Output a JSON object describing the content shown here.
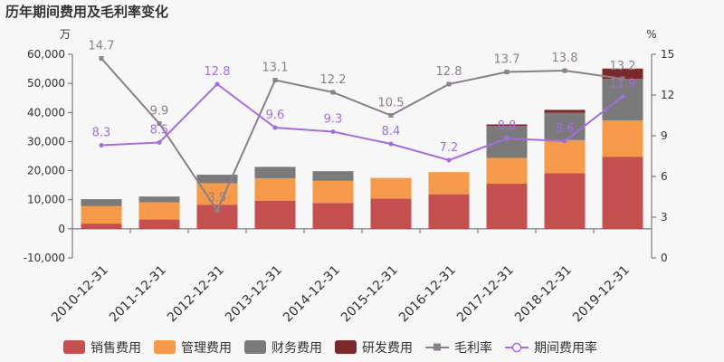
{
  "title": "历年期间费用及毛利率变化",
  "colors": {
    "sales": "#c4504f",
    "admin": "#f59a4a",
    "finance": "#7a7a7a",
    "rnd": "#7a2a2a",
    "gross_margin": "#8a7f8a",
    "period_rate": "#a66de0",
    "axis": "#666666",
    "grid": "#e3e3e3"
  },
  "chart_data": {
    "type": "bar",
    "title": "历年期间费用及毛利率变化",
    "stacked": true,
    "categories": [
      "2010-12-31",
      "2011-12-31",
      "2012-12-31",
      "2013-12-31",
      "2014-12-31",
      "2015-12-31",
      "2016-12-31",
      "2017-12-31",
      "2018-12-31",
      "2019-12-31"
    ],
    "y_left": {
      "unit": "万",
      "ylim": [
        -10000,
        60000
      ],
      "ticks": [
        -10000,
        0,
        10000,
        20000,
        30000,
        40000,
        50000,
        60000
      ],
      "tick_labels": [
        "-10,000",
        "0",
        "10,000",
        "20,000",
        "30,000",
        "40,000",
        "50,000",
        "60,000"
      ]
    },
    "y_right": {
      "unit": "%",
      "ylim": [
        0,
        15
      ],
      "ticks": [
        0,
        3,
        6,
        9,
        12,
        15
      ]
    },
    "series": [
      {
        "name": "销售费用",
        "key": "sales",
        "axis": "left",
        "kind": "bar",
        "values": [
          1800,
          3200,
          8300,
          9700,
          8900,
          10400,
          11900,
          15500,
          19100,
          24800
        ]
      },
      {
        "name": "管理费用",
        "key": "admin",
        "axis": "left",
        "kind": "bar",
        "values": [
          6000,
          5900,
          7400,
          7700,
          7600,
          7100,
          7600,
          8900,
          11400,
          12500
        ]
      },
      {
        "name": "财务费用",
        "key": "finance",
        "axis": "left",
        "kind": "bar",
        "values": [
          2400,
          2000,
          2900,
          3900,
          3300,
          0,
          0,
          11000,
          9400,
          14300
        ]
      },
      {
        "name": "研发费用",
        "key": "rnd",
        "axis": "left",
        "kind": "bar",
        "values": [
          0,
          0,
          0,
          0,
          0,
          0,
          0,
          500,
          1000,
          3500
        ]
      },
      {
        "name": "毛利率",
        "key": "gross_margin",
        "axis": "right",
        "kind": "line",
        "marker": "square",
        "values": [
          14.7,
          9.9,
          3.5,
          13.1,
          12.2,
          10.5,
          12.8,
          13.7,
          13.8,
          13.2
        ],
        "labels": [
          "14.7",
          "9.9",
          "3.5",
          "13.1",
          "12.2",
          "10.5",
          "12.8",
          "13.7",
          "13.8",
          "13.2"
        ]
      },
      {
        "name": "期间费用率",
        "key": "period_rate",
        "axis": "right",
        "kind": "line",
        "marker": "circle",
        "values": [
          8.3,
          8.5,
          12.8,
          9.6,
          9.3,
          8.4,
          7.2,
          8.8,
          8.6,
          11.9
        ],
        "labels": [
          "8.3",
          "8.5",
          "12.8",
          "9.6",
          "9.3",
          "8.4",
          "7.2",
          "8.8",
          "8.6",
          "11.9"
        ]
      }
    ],
    "grid": false,
    "legend": "bottom"
  }
}
